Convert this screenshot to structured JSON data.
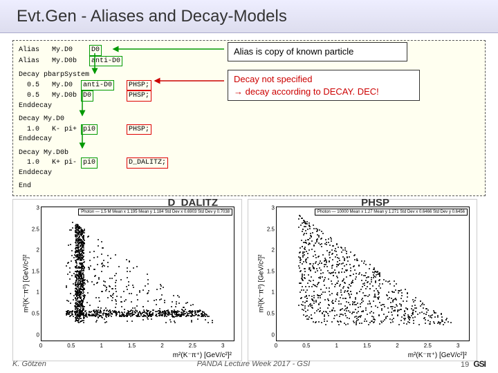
{
  "title": "Evt.Gen - Aliases and Decay-Models",
  "code": {
    "l1a": "Alias   My.D0    ",
    "l1b": "D0",
    "l2a": "Alias   My.D0b   ",
    "l2b": "anti-D0",
    "l3": "Decay pbarpSystem",
    "l4a": "  0.5   My.D0  ",
    "l4b": "anti-D0",
    "l4c": "   ",
    "l4d": "PHSP;",
    "l5a": "  0.5   My.D0b ",
    "l5b": "D0",
    "l5c": "        ",
    "l5d": "PHSP;",
    "l6": "Enddecay",
    "l7": "Decay My.D0",
    "l8a": "  1.0   K- pi+ ",
    "l8b": "pi0",
    "l8c": "       ",
    "l8d": "PHSP;",
    "l9": "Enddecay",
    "l10": "Decay My.D0b",
    "l11a": "  1.0   K+ pi- ",
    "l11b": "pi0",
    "l11c": "       ",
    "l11d": "D_DALITZ;",
    "l12": "Enddecay",
    "l13": "End"
  },
  "callout1": "Alias is copy of known particle",
  "callout2a": "Decay not specified",
  "callout2b": "→ decay according to DECAY. DEC!",
  "plot1": {
    "label": "D_DALITZ",
    "ylabel": "m²(K⁻π⁰) [GeV/c²]²",
    "xlabel": "m²(K⁻π⁺) [GeV/c²]²",
    "xlim": [
      0,
      3.2
    ],
    "ylim": [
      0,
      3.2
    ],
    "yticks": [
      "0",
      "0.5",
      "1",
      "1.5",
      "2",
      "2.5",
      "3"
    ],
    "xticks": [
      "0",
      "0.5",
      "1",
      "1.5",
      "2",
      "2.5",
      "3"
    ],
    "stat": "Photon — 1.5 M\nMean x  1.195\nMean y  1.184\nStd Dev x  0.6903\nStd Dev y  0.7038"
  },
  "plot2": {
    "label": "PHSP",
    "ylabel": "m²(K⁻π⁰) [GeV/c²]²",
    "xlabel": "m²(K⁻π⁺) [GeV/c²]²",
    "xlim": [
      0,
      3.2
    ],
    "ylim": [
      0,
      3.2
    ],
    "yticks": [
      "0",
      "0.5",
      "1",
      "1.5",
      "2",
      "2.5",
      "3"
    ],
    "xticks": [
      "0",
      "0.5",
      "1",
      "1.5",
      "2",
      "2.5",
      "3"
    ],
    "stat": "Photon — 10000\nMean x  1.27\nMean y  1.271\nStd Dev x  0.6466\nStd Dev y  0.6456"
  },
  "footer": {
    "author": "K. Götzen",
    "venue": "PANDA Lecture Week 2017 - GSI",
    "page": "19",
    "logo": "GSI"
  },
  "colors": {
    "titlebg1": "#e8efff",
    "titlebg2": "#d5ddf0",
    "codebg": "#fffff0",
    "green": "#009900",
    "red": "#cc0000"
  }
}
